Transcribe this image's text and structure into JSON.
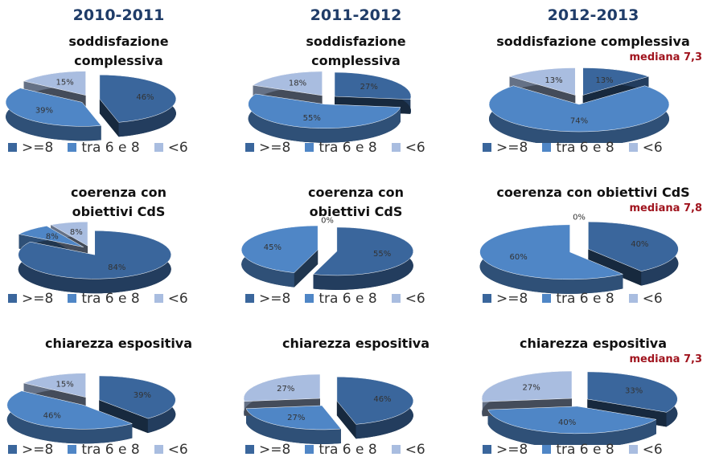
{
  "headers": [
    "2010-2011",
    "2011-2012",
    "2012-2013"
  ],
  "chart_data": [
    {
      "type": "pie",
      "title": "soddisfazione complessiva",
      "categories": [
        ">=8",
        "tra 6 e 8",
        "<6"
      ],
      "values": [
        46,
        39,
        15
      ],
      "value_labels": [
        "46%",
        "39%",
        "15%"
      ],
      "colors": [
        "#3a669c",
        "#4f86c6",
        "#a9bde0"
      ]
    },
    {
      "type": "pie",
      "title": "soddisfazione complessiva",
      "categories": [
        ">=8",
        "tra 6 e 8",
        "<6"
      ],
      "values": [
        27,
        55,
        18
      ],
      "value_labels": [
        "27%",
        "55%",
        "18%"
      ],
      "colors": [
        "#3a669c",
        "#4f86c6",
        "#a9bde0"
      ]
    },
    {
      "type": "pie",
      "title": "soddisfazione complessiva",
      "annotation": "mediana 7,3",
      "categories": [
        ">=8",
        "tra 6 e 8",
        "<6"
      ],
      "values": [
        13,
        74,
        13
      ],
      "value_labels": [
        "13%",
        "74%",
        "13%"
      ],
      "colors": [
        "#3a669c",
        "#4f86c6",
        "#a9bde0"
      ]
    },
    {
      "type": "pie",
      "title": "coerenza con obiettivi CdS",
      "categories": [
        ">=8",
        "tra 6 e 8",
        "<6"
      ],
      "values": [
        84,
        8,
        8
      ],
      "value_labels": [
        "84%",
        "8%",
        "8%"
      ],
      "colors": [
        "#3a669c",
        "#4f86c6",
        "#a9bde0"
      ]
    },
    {
      "type": "pie",
      "title": "coerenza con obiettivi CdS",
      "categories": [
        ">=8",
        "tra 6 e 8",
        "<6"
      ],
      "values": [
        55,
        45,
        0
      ],
      "value_labels": [
        "55%",
        "45%",
        "0%"
      ],
      "colors": [
        "#3a669c",
        "#4f86c6",
        "#a9bde0"
      ]
    },
    {
      "type": "pie",
      "title": "coerenza con obiettivi CdS",
      "annotation": "mediana 7,8",
      "categories": [
        ">=8",
        "tra 6 e 8",
        "<6"
      ],
      "values": [
        40,
        60,
        0
      ],
      "value_labels": [
        "40%",
        "60%",
        "0%"
      ],
      "colors": [
        "#3a669c",
        "#4f86c6",
        "#a9bde0"
      ]
    },
    {
      "type": "pie",
      "title": "chiarezza espositiva",
      "categories": [
        ">=8",
        "tra 6 e 8",
        "<6"
      ],
      "values": [
        39,
        46,
        15
      ],
      "value_labels": [
        "39%",
        "46%",
        "15%"
      ],
      "colors": [
        "#3a669c",
        "#4f86c6",
        "#a9bde0"
      ]
    },
    {
      "type": "pie",
      "title": "chiarezza espositiva",
      "categories": [
        ">=8",
        "tra 6 e 8",
        "<6"
      ],
      "values": [
        46,
        27,
        27
      ],
      "value_labels": [
        "46%",
        "27%",
        "27%"
      ],
      "colors": [
        "#3a669c",
        "#4f86c6",
        "#a9bde0"
      ]
    },
    {
      "type": "pie",
      "title": "chiarezza espositiva",
      "annotation": "mediana 7,3",
      "categories": [
        ">=8",
        "tra 6 e 8",
        "<6"
      ],
      "values": [
        33,
        40,
        27
      ],
      "value_labels": [
        "33%",
        "40%",
        "27%"
      ],
      "colors": [
        "#3a669c",
        "#4f86c6",
        "#a9bde0"
      ]
    }
  ]
}
